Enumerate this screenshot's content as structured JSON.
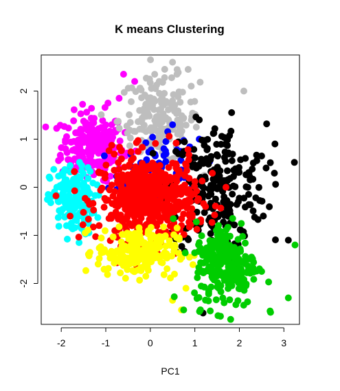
{
  "chart_data": {
    "type": "scatter",
    "title": "K means Clustering",
    "xlabel": "PC1",
    "ylabel": "",
    "xlim": [
      -2.45,
      3.35
    ],
    "ylim": [
      -2.85,
      2.75
    ],
    "x_ticks": [
      -2,
      -1,
      0,
      1,
      2,
      3
    ],
    "y_ticks": [
      -2,
      -1,
      0,
      1,
      2
    ],
    "x_tick_labels": [
      "-2",
      "-1",
      "0",
      "1",
      "2",
      "3"
    ],
    "y_tick_labels": [
      "-2",
      "-1",
      "0",
      "1",
      "2"
    ],
    "grid": false,
    "legend": "none",
    "series": [
      {
        "color": "#ff00ff",
        "center": [
          -1.3,
          0.85
        ],
        "spread": [
          0.35,
          0.35
        ],
        "count": 230,
        "extras": [
          [
            -0.6,
            2.35
          ],
          [
            -0.35,
            2.2
          ],
          [
            -0.95,
            1.75
          ],
          [
            -0.7,
            1.85
          ],
          [
            -1.45,
            1.3
          ]
        ]
      },
      {
        "color": "#bebebe",
        "center": [
          0.2,
          1.4
        ],
        "spread": [
          0.45,
          0.45
        ],
        "count": 180,
        "extras": [
          [
            0.5,
            2.6
          ],
          [
            0.85,
            2.45
          ],
          [
            0.6,
            2.35
          ],
          [
            2.1,
            2.0
          ],
          [
            0.2,
            2.2
          ]
        ]
      },
      {
        "color": "#0000ff",
        "center": [
          0.25,
          0.3
        ],
        "spread": [
          0.45,
          0.35
        ],
        "count": 80,
        "extras": [
          [
            0.5,
            1.3
          ],
          [
            1.1,
            1.0
          ],
          [
            0.35,
            0.95
          ]
        ]
      },
      {
        "color": "#000000",
        "center": [
          1.5,
          0.0
        ],
        "spread": [
          0.55,
          0.65
        ],
        "count": 240,
        "extras": [
          [
            2.8,
            0.9
          ],
          [
            3.1,
            -1.1
          ],
          [
            1.1,
            1.4
          ],
          [
            2.5,
            0.65
          ],
          [
            2.6,
            0.4
          ]
        ]
      },
      {
        "color": "#00ffff",
        "center": [
          -1.75,
          -0.3
        ],
        "spread": [
          0.25,
          0.35
        ],
        "count": 170,
        "extras": [
          [
            -2.1,
            0.0
          ],
          [
            -1.8,
            0.45
          ],
          [
            -1.6,
            -1.15
          ]
        ]
      },
      {
        "color": "#ff0000",
        "center": [
          -0.05,
          -0.25
        ],
        "spread": [
          0.55,
          0.45
        ],
        "count": 520,
        "extras": [
          [
            -1.15,
            0.3
          ],
          [
            0.9,
            -0.3
          ],
          [
            1.7,
            0.0
          ],
          [
            -1.8,
            -0.6
          ]
        ]
      },
      {
        "color": "#ffff00",
        "center": [
          -0.3,
          -1.35
        ],
        "spread": [
          0.45,
          0.25
        ],
        "count": 210,
        "extras": [
          [
            0.5,
            -2.35
          ],
          [
            0.7,
            -2.55
          ],
          [
            0.8,
            -2.1
          ],
          [
            -0.1,
            -1.85
          ]
        ]
      },
      {
        "color": "#00cd00",
        "center": [
          1.7,
          -1.6
        ],
        "spread": [
          0.35,
          0.45
        ],
        "count": 230,
        "extras": [
          [
            3.25,
            -1.2
          ],
          [
            3.1,
            -2.3
          ],
          [
            2.7,
            -2.6
          ],
          [
            0.75,
            -2.55
          ],
          [
            2.5,
            -1.75
          ],
          [
            1.1,
            -1.15
          ]
        ]
      }
    ]
  }
}
